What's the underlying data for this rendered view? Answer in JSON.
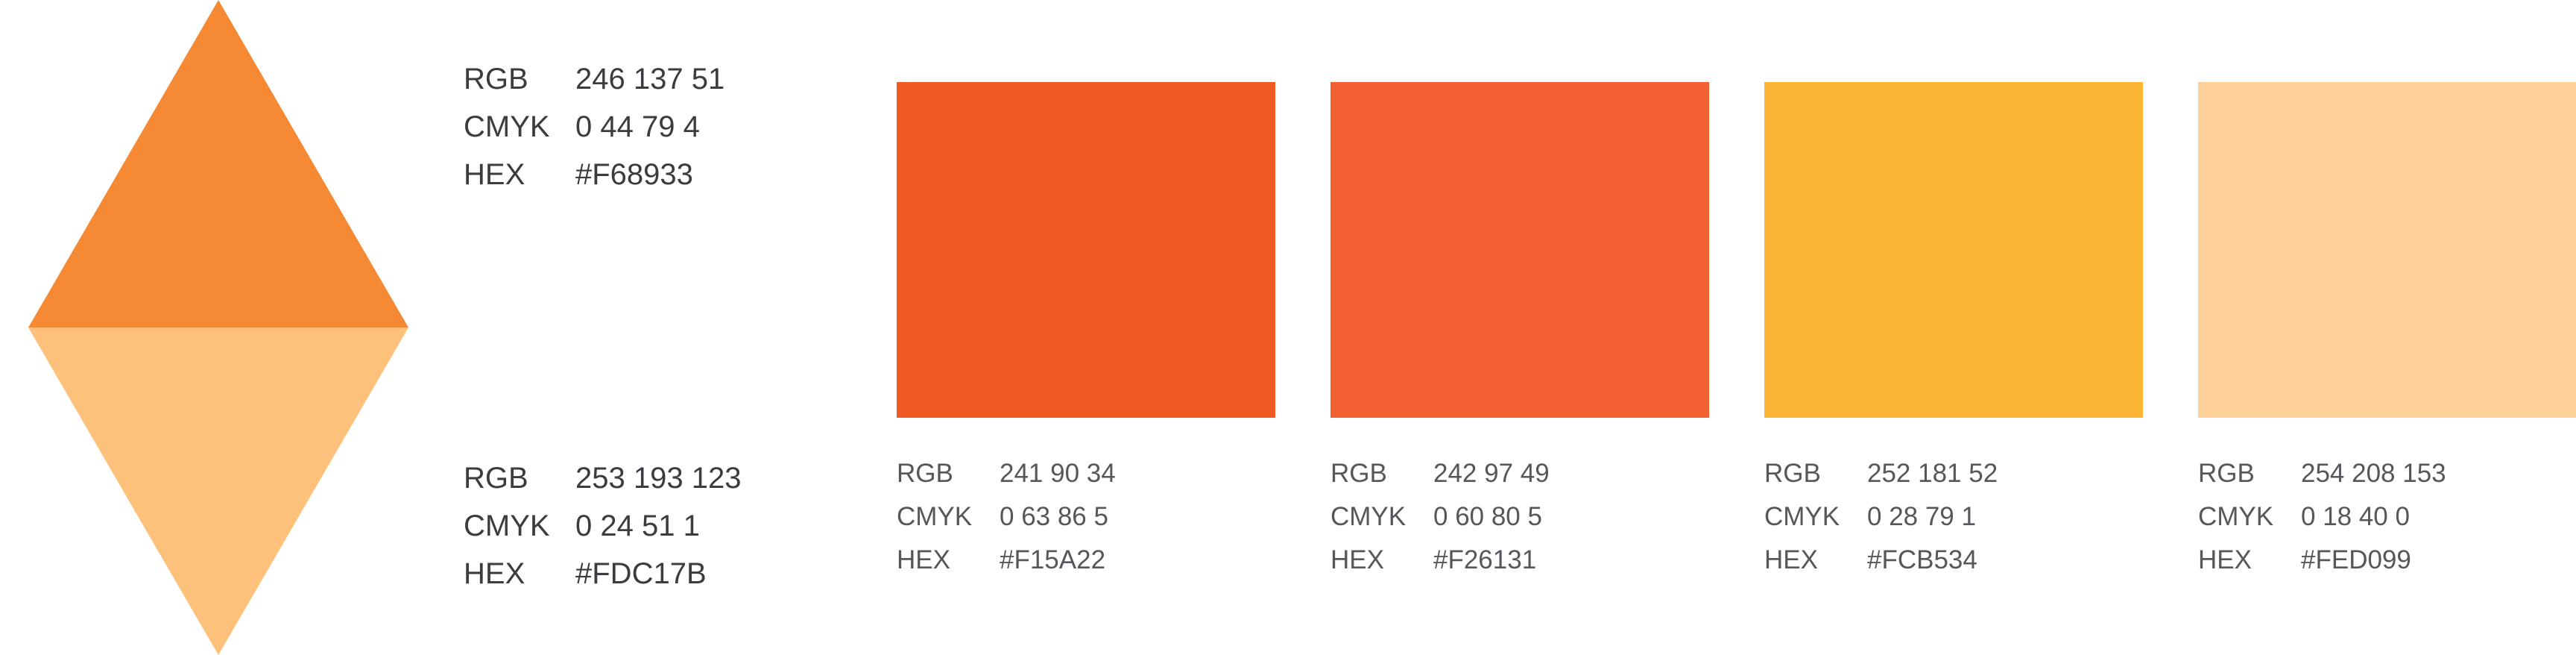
{
  "main_colors": [
    {
      "rgb": "246 137 51",
      "cmyk": "0 44 79 4",
      "hex": "#F68933",
      "color": "#F68933"
    },
    {
      "rgb": "253 193 123",
      "cmyk": "0 24 51 1",
      "hex": "#FDC17B",
      "color": "#FDC17B"
    }
  ],
  "swatches": [
    {
      "rgb": "241 90 34",
      "cmyk": "0 63 86 5",
      "hex": "#F15A22",
      "color": "#F15A22"
    },
    {
      "rgb": "242 97 49",
      "cmyk": "0 60 80 5",
      "hex": "#F26131",
      "color": "#F26131"
    },
    {
      "rgb": "252 181 52",
      "cmyk": "0 28 79 1",
      "hex": "#FCB534",
      "color": "#FCB534"
    },
    {
      "rgb": "254 208 153",
      "cmyk": "0 18 40 0",
      "hex": "#FED099",
      "color": "#FED099"
    }
  ],
  "labels": {
    "rgb": "RGB",
    "cmyk": "CMYK",
    "hex": "HEX"
  }
}
